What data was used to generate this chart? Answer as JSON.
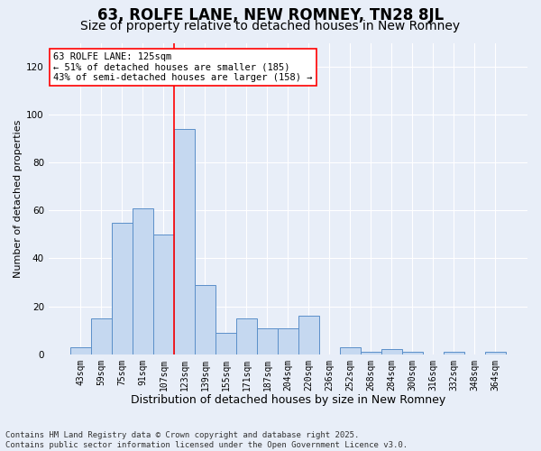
{
  "title": "63, ROLFE LANE, NEW ROMNEY, TN28 8JL",
  "subtitle": "Size of property relative to detached houses in New Romney",
  "xlabel": "Distribution of detached houses by size in New Romney",
  "ylabel": "Number of detached properties",
  "categories": [
    "43sqm",
    "59sqm",
    "75sqm",
    "91sqm",
    "107sqm",
    "123sqm",
    "139sqm",
    "155sqm",
    "171sqm",
    "187sqm",
    "204sqm",
    "220sqm",
    "236sqm",
    "252sqm",
    "268sqm",
    "284sqm",
    "300sqm",
    "316sqm",
    "332sqm",
    "348sqm",
    "364sqm"
  ],
  "values": [
    3,
    15,
    55,
    61,
    50,
    94,
    29,
    9,
    15,
    11,
    11,
    16,
    0,
    3,
    1,
    2,
    1,
    0,
    1,
    0,
    1
  ],
  "bar_color": "#c5d8f0",
  "bar_edge_color": "#5b8fc9",
  "background_color": "#e8eef8",
  "vline_index": 5,
  "vline_color": "red",
  "annotation_text": "63 ROLFE LANE: 125sqm\n← 51% of detached houses are smaller (185)\n43% of semi-detached houses are larger (158) →",
  "annotation_box_color": "white",
  "annotation_box_edge_color": "red",
  "ylim": [
    0,
    130
  ],
  "yticks": [
    0,
    20,
    40,
    60,
    80,
    100,
    120
  ],
  "footer_text": "Contains HM Land Registry data © Crown copyright and database right 2025.\nContains public sector information licensed under the Open Government Licence v3.0.",
  "title_fontsize": 12,
  "subtitle_fontsize": 10,
  "xlabel_fontsize": 9,
  "ylabel_fontsize": 8,
  "tick_fontsize": 7,
  "footer_fontsize": 6.5,
  "annotation_fontsize": 7.5
}
